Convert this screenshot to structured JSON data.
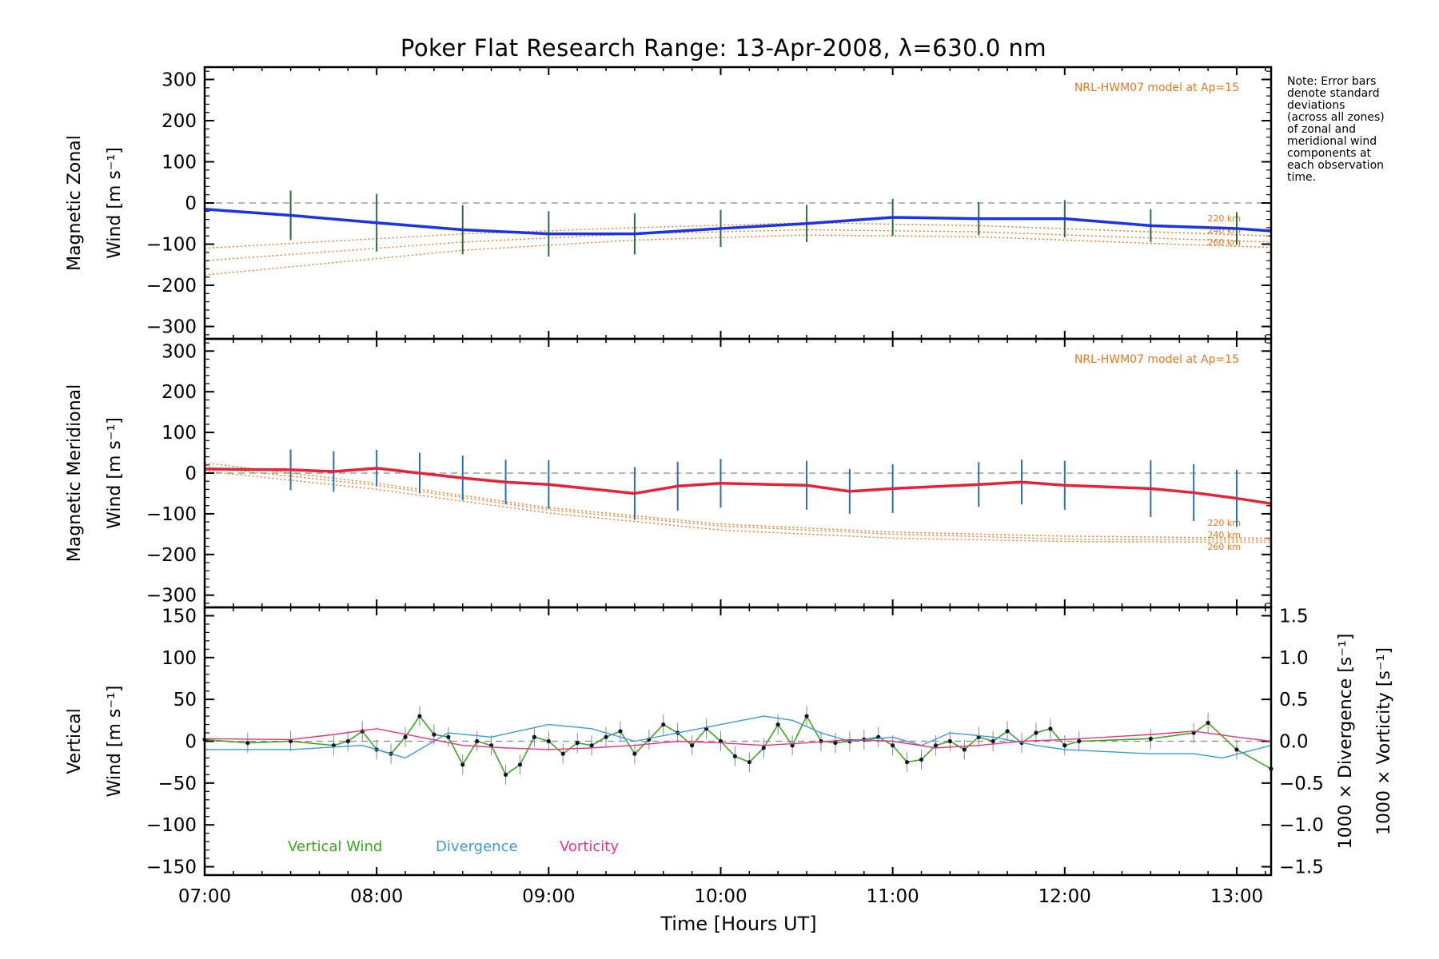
{
  "title": "Poker Flat Research Range: 13-Apr-2008, λ=630.0 nm",
  "xlabel": "Time [Hours UT]",
  "note_lines": [
    "Note: Error bars",
    "denote standard",
    "deviations",
    "(across all zones)",
    "of zonal and",
    "meridional wind",
    "components at",
    "each observation",
    "time."
  ],
  "colors": {
    "zonal": "#1a33e6",
    "meridional": "#e62236",
    "model": "#e8761f",
    "vertical": "#3aa71c",
    "divergence": "#3b9ad6",
    "vorticity": "#e8337c",
    "zone_points": "#9a9ae6"
  },
  "chart_data": [
    {
      "type": "line",
      "ylabel": [
        "Magnetic Zonal",
        "Wind [m s⁻¹]"
      ],
      "ylim": [
        -330,
        330
      ],
      "yticks": [
        300,
        200,
        100,
        0,
        -100,
        -200,
        -300
      ],
      "xlim": [
        "07:00",
        "13:12"
      ],
      "xticks": [
        "07:00",
        "08:00",
        "09:00",
        "10:00",
        "11:00",
        "12:00",
        "13:00"
      ],
      "model_label": "NRL-HWM07 model at Ap=15",
      "model_altitudes": [
        "220 km",
        "240 km",
        "260 km"
      ],
      "model_lines": [
        {
          "x": [
            "07:00",
            "08:30",
            "09:30",
            "10:30",
            "11:30",
            "12:30",
            "13:12"
          ],
          "y": [
            -110,
            -75,
            -60,
            -48,
            -55,
            -70,
            -80
          ]
        },
        {
          "x": [
            "07:00",
            "08:30",
            "09:30",
            "10:30",
            "11:30",
            "12:30",
            "13:12"
          ],
          "y": [
            -140,
            -95,
            -75,
            -65,
            -70,
            -85,
            -95
          ]
        },
        {
          "x": [
            "07:00",
            "08:30",
            "09:30",
            "10:30",
            "11:30",
            "12:30",
            "13:12"
          ],
          "y": [
            -175,
            -115,
            -90,
            -78,
            -82,
            -98,
            -108
          ]
        }
      ],
      "series": [
        {
          "x": [
            "07:00",
            "07:30",
            "08:00",
            "08:30",
            "09:00",
            "09:30",
            "10:00",
            "10:30",
            "11:00",
            "11:30",
            "12:00",
            "12:30",
            "13:00",
            "13:12"
          ],
          "y": [
            -15,
            -30,
            -48,
            -65,
            -75,
            -75,
            -62,
            -50,
            -35,
            -38,
            -38,
            -55,
            -62,
            -68
          ],
          "error": [
            10,
            60,
            70,
            60,
            55,
            50,
            45,
            45,
            45,
            40,
            45,
            40,
            40,
            40
          ]
        }
      ]
    },
    {
      "type": "line",
      "ylabel": [
        "Magnetic Meridional",
        "Wind [m s⁻¹]"
      ],
      "ylim": [
        -330,
        330
      ],
      "yticks": [
        300,
        200,
        100,
        0,
        -100,
        -200,
        -300
      ],
      "xlim": [
        "07:00",
        "13:12"
      ],
      "xticks": [
        "07:00",
        "08:00",
        "09:00",
        "10:00",
        "11:00",
        "12:00",
        "13:00"
      ],
      "model_label": "NRL-HWM07 model at Ap=15",
      "model_altitudes": [
        "220 km",
        "240 km",
        "260 km"
      ],
      "model_lines": [
        {
          "x": [
            "07:00",
            "08:00",
            "09:00",
            "10:00",
            "11:00",
            "12:00",
            "13:12"
          ],
          "y": [
            25,
            -25,
            -85,
            -125,
            -145,
            -155,
            -160
          ]
        },
        {
          "x": [
            "07:00",
            "08:00",
            "09:00",
            "10:00",
            "11:00",
            "12:00",
            "13:12"
          ],
          "y": [
            15,
            -30,
            -90,
            -130,
            -150,
            -162,
            -165
          ]
        },
        {
          "x": [
            "07:00",
            "08:00",
            "09:00",
            "10:00",
            "11:00",
            "12:00",
            "13:12"
          ],
          "y": [
            5,
            -40,
            -98,
            -140,
            -160,
            -168,
            -170
          ]
        }
      ],
      "series": [
        {
          "x": [
            "07:00",
            "07:30",
            "07:45",
            "08:00",
            "08:15",
            "08:30",
            "08:45",
            "09:00",
            "09:30",
            "09:45",
            "10:00",
            "10:30",
            "10:45",
            "11:00",
            "11:30",
            "11:45",
            "12:00",
            "12:30",
            "12:45",
            "13:00",
            "13:12"
          ],
          "y": [
            10,
            8,
            4,
            12,
            0,
            -12,
            -22,
            -28,
            -50,
            -32,
            -25,
            -30,
            -45,
            -38,
            -28,
            -22,
            -30,
            -38,
            -48,
            -62,
            -75
          ],
          "error": [
            15,
            50,
            50,
            45,
            50,
            55,
            55,
            60,
            65,
            60,
            60,
            60,
            55,
            60,
            55,
            55,
            60,
            70,
            70,
            70,
            30
          ]
        }
      ]
    },
    {
      "type": "line",
      "ylabel": [
        "Vertical",
        "Wind [m s⁻¹]"
      ],
      "ylim": [
        -160,
        160
      ],
      "yticks": [
        150,
        100,
        50,
        0,
        -50,
        -100,
        -150
      ],
      "y2label_divergence": "1000 × Divergence [s⁻¹]",
      "y2label_vorticity": "1000 × Vorticity [s⁻¹]",
      "y2lim": [
        -1.6,
        1.6
      ],
      "y2ticks": [
        "1.5",
        "1.0",
        "0.5",
        "0.0",
        "−0.5",
        "−1.0",
        "−1.5"
      ],
      "xlim": [
        "07:00",
        "13:12"
      ],
      "xticks": [
        "07:00",
        "08:00",
        "09:00",
        "10:00",
        "11:00",
        "12:00",
        "13:00"
      ],
      "legend": [
        "Vertical Wind",
        "Divergence",
        "Vorticity"
      ],
      "series": [
        {
          "name": "Vertical Wind",
          "x": [
            "07:00",
            "07:15",
            "07:30",
            "07:45",
            "07:50",
            "07:55",
            "08:00",
            "08:05",
            "08:10",
            "08:15",
            "08:20",
            "08:25",
            "08:30",
            "08:35",
            "08:40",
            "08:45",
            "08:50",
            "08:55",
            "09:00",
            "09:05",
            "09:10",
            "09:15",
            "09:20",
            "09:25",
            "09:30",
            "09:35",
            "09:40",
            "09:45",
            "09:50",
            "09:55",
            "10:00",
            "10:05",
            "10:10",
            "10:15",
            "10:20",
            "10:25",
            "10:30",
            "10:35",
            "10:40",
            "10:45",
            "10:50",
            "10:55",
            "11:00",
            "11:05",
            "11:10",
            "11:15",
            "11:20",
            "11:25",
            "11:30",
            "11:35",
            "11:40",
            "11:45",
            "11:50",
            "11:55",
            "12:00",
            "12:05",
            "12:30",
            "12:45",
            "12:50",
            "13:00",
            "13:12"
          ],
          "y": [
            2,
            -2,
            0,
            -5,
            0,
            12,
            -10,
            -15,
            5,
            30,
            8,
            5,
            -28,
            0,
            -5,
            -40,
            -28,
            5,
            0,
            -15,
            -2,
            -5,
            5,
            12,
            -15,
            2,
            20,
            10,
            -5,
            15,
            0,
            -18,
            -25,
            -8,
            20,
            -5,
            30,
            0,
            -2,
            0,
            2,
            5,
            -5,
            -25,
            -22,
            -5,
            0,
            -10,
            5,
            0,
            12,
            -2,
            10,
            15,
            -5,
            0,
            3,
            10,
            22,
            -10,
            -33
          ],
          "error": 12
        },
        {
          "name": "Divergence",
          "x": [
            "07:00",
            "07:30",
            "07:55",
            "08:10",
            "08:25",
            "08:40",
            "09:00",
            "09:15",
            "09:30",
            "09:45",
            "10:00",
            "10:15",
            "10:25",
            "10:35",
            "10:45",
            "11:00",
            "11:10",
            "11:20",
            "11:35",
            "11:50",
            "12:00",
            "12:30",
            "12:45",
            "12:55",
            "13:12"
          ],
          "y": [
            -0.1,
            -0.1,
            -0.05,
            -0.2,
            0.1,
            0.05,
            0.2,
            0.15,
            0.0,
            0.1,
            0.2,
            0.3,
            0.25,
            0.1,
            0.0,
            0.05,
            -0.05,
            0.1,
            0.05,
            -0.05,
            -0.1,
            -0.15,
            -0.15,
            -0.2,
            -0.05
          ],
          "axis": "right"
        },
        {
          "name": "Vorticity",
          "x": [
            "07:00",
            "07:30",
            "07:45",
            "08:00",
            "08:15",
            "08:30",
            "08:45",
            "09:00",
            "09:15",
            "09:30",
            "09:45",
            "10:00",
            "10:15",
            "10:30",
            "10:45",
            "11:00",
            "11:15",
            "11:30",
            "11:45",
            "12:00",
            "12:30",
            "12:45",
            "13:00",
            "13:12"
          ],
          "y": [
            0.03,
            0.02,
            0.08,
            0.15,
            0.05,
            -0.05,
            -0.08,
            -0.1,
            -0.08,
            -0.05,
            0.0,
            -0.02,
            -0.05,
            -0.02,
            0.02,
            0.0,
            -0.08,
            -0.05,
            0.0,
            0.02,
            0.08,
            0.12,
            0.05,
            0.0
          ],
          "axis": "right"
        }
      ]
    }
  ]
}
